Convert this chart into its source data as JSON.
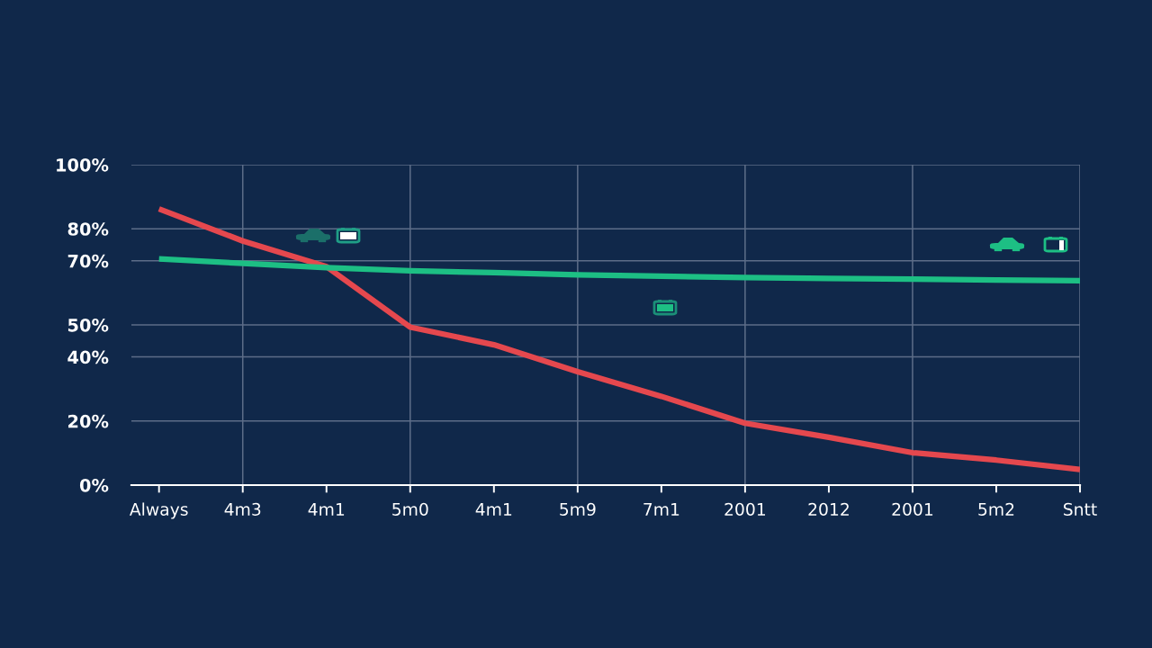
{
  "chart_data": {
    "type": "line",
    "categories": [
      "Always",
      "4m3",
      "4m1",
      "5m0",
      "4m1",
      "5m9",
      "7m1",
      "2001",
      "2012",
      "2001",
      "5m2",
      "Sntt"
    ],
    "series": [
      {
        "color": "#e5484e",
        "values": [
          86.2,
          76.2,
          68.2,
          49.3,
          43.8,
          35.4,
          27.7,
          19.3,
          14.9,
          10.1,
          7.8,
          4.9
        ]
      },
      {
        "color": "#1dbf84",
        "values": [
          70.6,
          69.2,
          67.9,
          66.9,
          66.3,
          65.6,
          65.2,
          64.8,
          64.5,
          64.3,
          64.0,
          63.8
        ]
      }
    ],
    "ylim": [
      0,
      100
    ],
    "yticks": [
      {
        "value": 0,
        "label": "0%"
      },
      {
        "value": 20,
        "label": "20%"
      },
      {
        "value": 40,
        "label": "40%"
      },
      {
        "value": 50,
        "label": "50%"
      },
      {
        "value": 70,
        "label": "70%"
      },
      {
        "value": 80,
        "label": "80%"
      },
      {
        "value": 100,
        "label": "100%"
      }
    ],
    "grid": true
  }
}
